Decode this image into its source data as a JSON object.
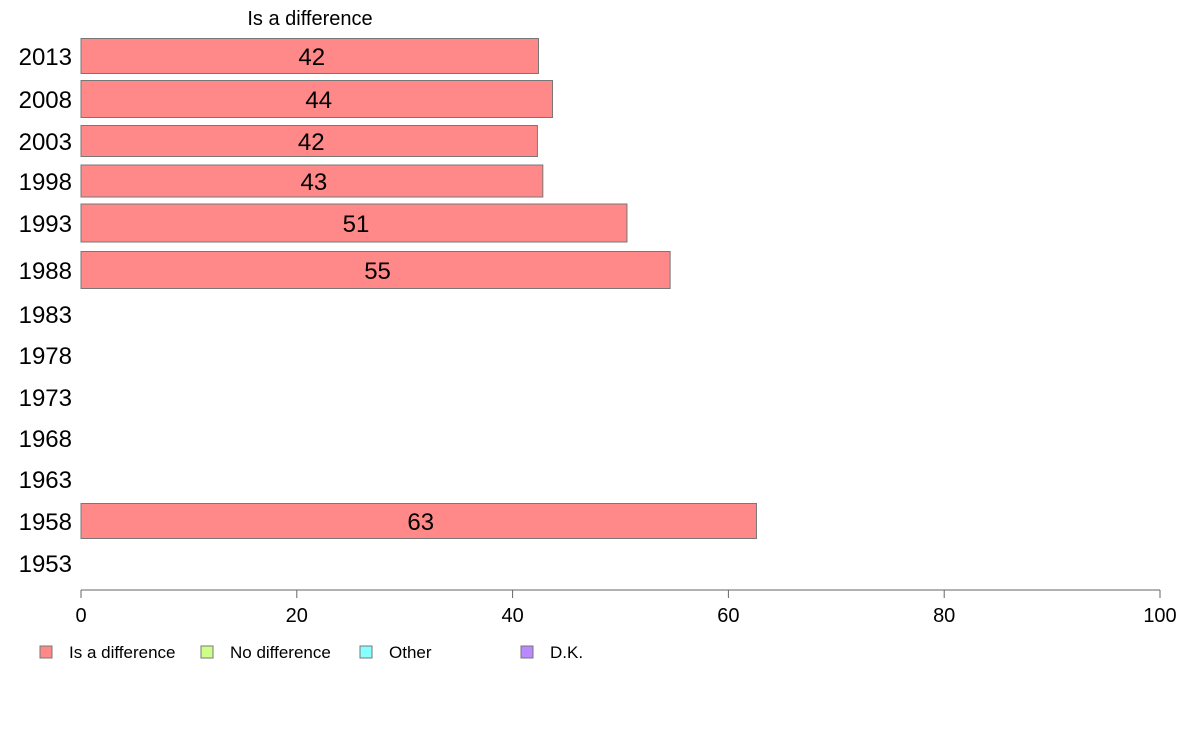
{
  "chart_data": {
    "type": "bar",
    "orientation": "horizontal",
    "title": "Is a difference",
    "categories": [
      "2013",
      "2008",
      "2003",
      "1998",
      "1993",
      "1988",
      "1983",
      "1978",
      "1973",
      "1968",
      "1963",
      "1958",
      "1953"
    ],
    "series": [
      {
        "name": "Is a difference",
        "values": [
          42.4,
          43.7,
          42.3,
          42.8,
          50.6,
          54.6,
          null,
          null,
          null,
          null,
          null,
          62.6,
          null
        ],
        "labels": [
          "42",
          "44",
          "42",
          "43",
          "51",
          "55",
          "",
          "",
          "",
          "",
          "",
          "63",
          ""
        ]
      }
    ],
    "xlim": [
      0,
      100
    ],
    "xticks": [
      0,
      20,
      40,
      60,
      80,
      100
    ],
    "legend": {
      "position": "bottom-left",
      "entries": [
        {
          "label": "Is a difference",
          "color": "#ff8888"
        },
        {
          "label": "No difference",
          "color": "#ccff88"
        },
        {
          "label": "Other",
          "color": "#88ffff"
        },
        {
          "label": "D.K.",
          "color": "#bb88ff"
        }
      ]
    },
    "colors": {
      "bar": "#ff8888",
      "bar_stroke": "#777777",
      "axis": "#666666"
    },
    "grid": false
  }
}
